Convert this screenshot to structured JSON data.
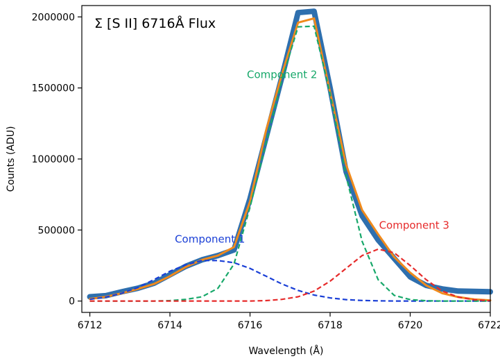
{
  "chart_data": {
    "type": "line",
    "title": "Σ [S II] 6716Å Flux",
    "xlabel": "Wavelength (Å)",
    "ylabel": "Counts (ADU)",
    "xlim": [
      6711.8,
      6722.0
    ],
    "ylim": [
      -80000,
      2080000
    ],
    "x_ticks": [
      6712,
      6714,
      6716,
      6718,
      6720,
      6722
    ],
    "x_tick_labels": [
      "6712",
      "6714",
      "6716",
      "6718",
      "6720",
      "6722"
    ],
    "y_ticks": [
      0,
      500000,
      1000000,
      1500000,
      2000000
    ],
    "y_tick_labels": [
      "0",
      "500000",
      "1000000",
      "1500000",
      "2000000"
    ],
    "grid": false,
    "x": [
      6712.0,
      6712.4,
      6712.8,
      6713.2,
      6713.6,
      6714.0,
      6714.4,
      6714.8,
      6715.2,
      6715.6,
      6716.0,
      6716.4,
      6716.8,
      6717.2,
      6717.6,
      6718.0,
      6718.4,
      6718.8,
      6719.2,
      6719.6,
      6720.0,
      6720.4,
      6720.8,
      6721.2,
      6721.6,
      6722.0
    ],
    "series": [
      {
        "color": "#2e6fae",
        "style": "solid-thick",
        "values": [
          30000,
          38000,
          65000,
          90000,
          125000,
          185000,
          245000,
          290000,
          320000,
          360000,
          720000,
          1150000,
          1580000,
          2030000,
          2040000,
          1500000,
          910000,
          600000,
          430000,
          300000,
          170000,
          110000,
          85000,
          70000,
          68000,
          65000
        ]
      },
      {
        "color": "#f08a1c",
        "style": "solid",
        "values": [
          15000,
          30000,
          55000,
          85000,
          120000,
          175000,
          240000,
          290000,
          320000,
          380000,
          700000,
          1200000,
          1600000,
          1960000,
          1990000,
          1470000,
          960000,
          640000,
          470000,
          310000,
          200000,
          110000,
          55000,
          28000,
          12000,
          5000
        ]
      },
      {
        "name": "Component 1",
        "color": "#1a3fd6",
        "style": "dashed",
        "values": [
          12000,
          28000,
          55000,
          95000,
          150000,
          210000,
          255000,
          285000,
          285000,
          270000,
          230000,
          175000,
          120000,
          75000,
          42000,
          22000,
          10000,
          4000,
          1500,
          0,
          0,
          0,
          0,
          0,
          0,
          0
        ]
      },
      {
        "name": "Component 2",
        "color": "#17a86a",
        "style": "dashed",
        "values": [
          0,
          0,
          0,
          0,
          0,
          3000,
          12000,
          30000,
          90000,
          260000,
          660000,
          1110000,
          1560000,
          1930000,
          1935000,
          1460000,
          880000,
          420000,
          150000,
          40000,
          10000,
          2000,
          0,
          0,
          0,
          0
        ]
      },
      {
        "name": "Component 3",
        "color": "#e62a2a",
        "style": "dashed",
        "values": [
          0,
          0,
          0,
          0,
          0,
          0,
          0,
          0,
          0,
          0,
          0,
          3000,
          12000,
          30000,
          70000,
          140000,
          230000,
          320000,
          365000,
          340000,
          250000,
          150000,
          70000,
          28000,
          9000,
          2000
        ]
      }
    ],
    "annotations": [
      {
        "text": "Component 1",
        "x": 6715.0,
        "y": 410000,
        "color": "#1a3fd6"
      },
      {
        "text": "Component 2",
        "x": 6716.8,
        "y": 1570000,
        "color": "#17a86a"
      },
      {
        "text": "Component 3",
        "x": 6720.1,
        "y": 510000,
        "color": "#e62a2a"
      }
    ]
  }
}
